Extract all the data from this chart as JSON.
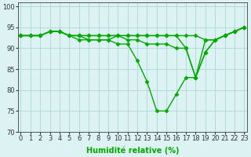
{
  "x": [
    0,
    1,
    2,
    3,
    4,
    5,
    6,
    7,
    8,
    9,
    10,
    11,
    12,
    13,
    14,
    15,
    16,
    17,
    18,
    19,
    20,
    21,
    22,
    23
  ],
  "lines": [
    {
      "y": [
        93,
        93,
        93,
        94,
        94,
        93,
        93,
        93,
        93,
        93,
        93,
        93,
        93,
        93,
        93,
        93,
        93,
        93,
        93,
        92,
        92,
        93,
        94,
        95
      ]
    },
    {
      "y": [
        93,
        93,
        93,
        94,
        94,
        93,
        93,
        93,
        93,
        93,
        93,
        93,
        93,
        93,
        93,
        93,
        93,
        90,
        83,
        92,
        92,
        93,
        94,
        95
      ]
    },
    {
      "y": [
        93,
        93,
        93,
        94,
        94,
        93,
        93,
        92,
        92,
        92,
        93,
        92,
        92,
        91,
        91,
        91,
        90,
        90,
        83,
        89,
        92,
        93,
        94,
        95
      ]
    },
    {
      "y": [
        93,
        93,
        93,
        94,
        94,
        93,
        92,
        92,
        92,
        92,
        91,
        91,
        87,
        82,
        75,
        75,
        79,
        83,
        83,
        89,
        92,
        93,
        94,
        95
      ]
    }
  ],
  "xlim": [
    -0.3,
    23.3
  ],
  "ylim": [
    70,
    101
  ],
  "yticks": [
    70,
    75,
    80,
    85,
    90,
    95,
    100
  ],
  "xticks": [
    0,
    1,
    2,
    3,
    4,
    5,
    6,
    7,
    8,
    9,
    10,
    11,
    12,
    13,
    14,
    15,
    16,
    17,
    18,
    19,
    20,
    21,
    22,
    23
  ],
  "xlabel": "Humidité relative (%)",
  "bg_color": "#ddf2f2",
  "grid_color": "#aad8d8",
  "line_color": "#00aa00",
  "marker": "D",
  "markersize": 2.5,
  "linewidth": 1.0,
  "xlabel_fontsize": 7,
  "tick_fontsize": 6
}
